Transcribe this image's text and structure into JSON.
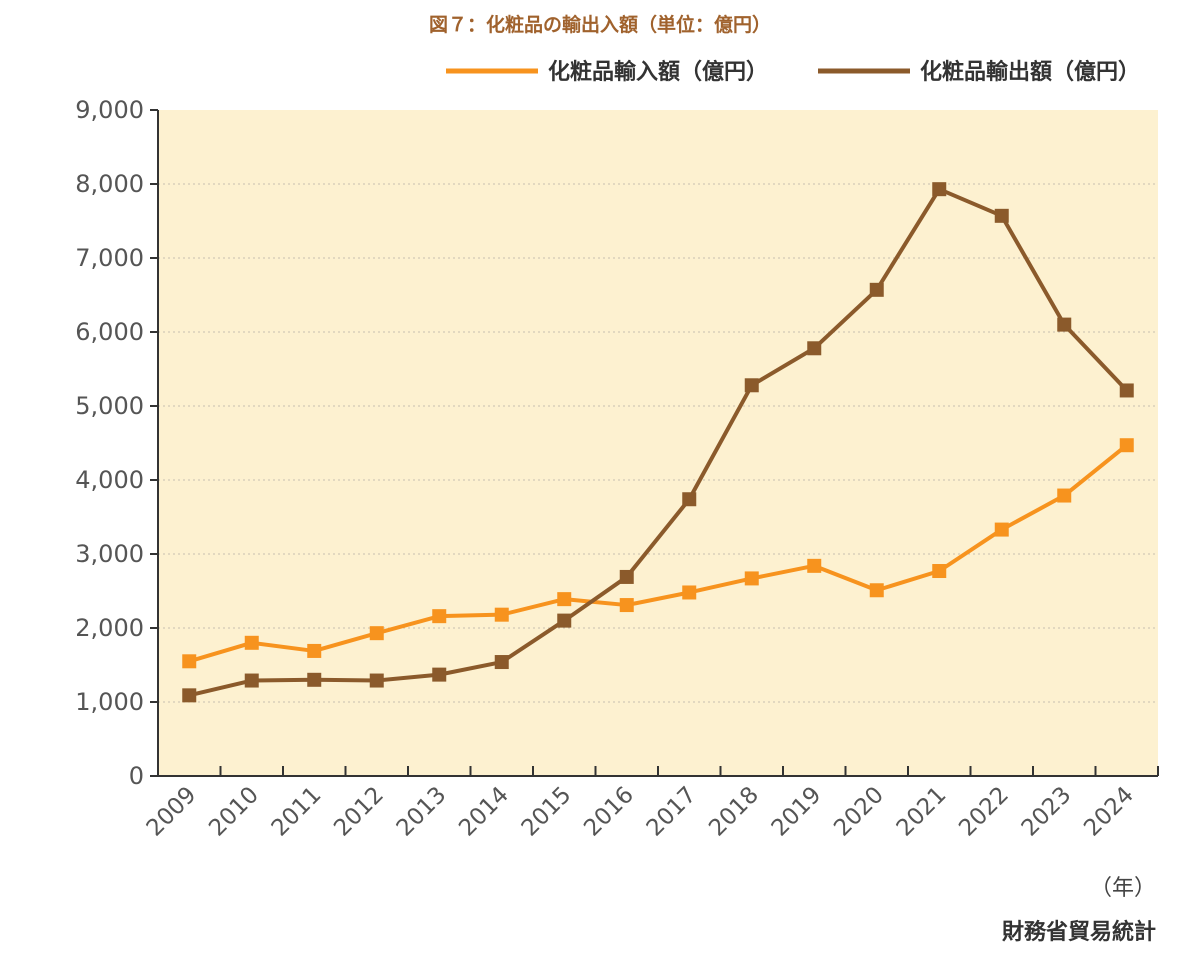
{
  "chart_data": {
    "type": "line",
    "title": "図７：化粧品の輸出入額（単位：億円）",
    "x_unit_label": "（年）",
    "source": "財務省貿易統計",
    "categories": [
      "2009",
      "2010",
      "2011",
      "2012",
      "2013",
      "2014",
      "2015",
      "2016",
      "2017",
      "2018",
      "2019",
      "2020",
      "2021",
      "2022",
      "2023",
      "2024"
    ],
    "ylim": [
      0,
      9000
    ],
    "yticks": [
      0,
      1000,
      2000,
      3000,
      4000,
      5000,
      6000,
      7000,
      8000,
      9000
    ],
    "ytick_labels": [
      "0",
      "1,000",
      "2,000",
      "3,000",
      "4,000",
      "5,000",
      "6,000",
      "7,000",
      "8,000",
      "9,000"
    ],
    "grid": true,
    "legend_position": "top-right",
    "series": [
      {
        "name": "化粧品輸入額（億円）",
        "color": "#f7931e",
        "values": [
          1550,
          1800,
          1690,
          1930,
          2160,
          2180,
          2390,
          2310,
          2480,
          2670,
          2840,
          2510,
          2770,
          3330,
          3790,
          4470
        ]
      },
      {
        "name": "化粧品輸出額（億円）",
        "color": "#8b5a2b",
        "values": [
          1090,
          1290,
          1300,
          1290,
          1370,
          1540,
          2100,
          2690,
          3740,
          5280,
          5780,
          6570,
          7930,
          7570,
          6100,
          5210
        ]
      }
    ],
    "colors": {
      "plot_background": "#fdf1d0",
      "axis": "#333333",
      "grid": "#c8c0b0"
    }
  }
}
